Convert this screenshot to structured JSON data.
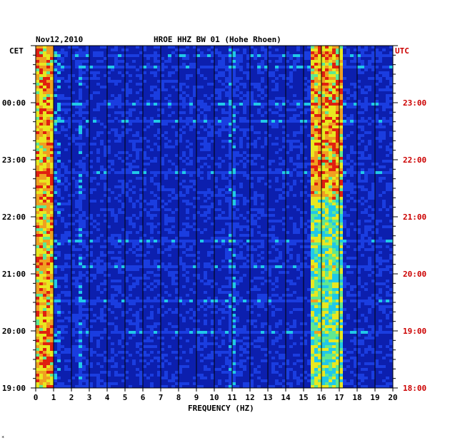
{
  "chart_data": {
    "type": "heatmap",
    "date": "Nov12,2010",
    "title": "HROE HHZ BW 01 (Hohe Rhoen)",
    "left_axis_label": "CET",
    "right_axis_label": "UTC",
    "xlabel": "FREQUENCY (HZ)",
    "xlim": [
      0,
      20
    ],
    "x_ticks": [
      "0",
      "1",
      "2",
      "3",
      "4",
      "5",
      "6",
      "7",
      "8",
      "9",
      "10",
      "11",
      "12",
      "13",
      "14",
      "15",
      "16",
      "17",
      "18",
      "19",
      "20"
    ],
    "cet_ticks": [
      "19:00",
      "20:00",
      "21:00",
      "22:00",
      "23:00",
      "00:00"
    ],
    "utc_ticks": [
      "18:00",
      "19:00",
      "20:00",
      "21:00",
      "22:00",
      "23:00"
    ],
    "time_range_hours_utc": [
      18,
      24
    ],
    "bands": [
      {
        "name": "low-frequency",
        "freq_range": [
          0.1,
          0.9
        ],
        "intensity": "high"
      },
      {
        "name": "narrow-16hz",
        "freq_range": [
          15.5,
          17.2
        ],
        "intensity": "high"
      }
    ],
    "colors": {
      "background": "#0c1fae",
      "low": "#1a3de0",
      "mid": "#20c8e8",
      "high": "#e8e820",
      "peak": "#e02010",
      "utc_label": "#cc0000"
    }
  },
  "footer_mark": "*"
}
